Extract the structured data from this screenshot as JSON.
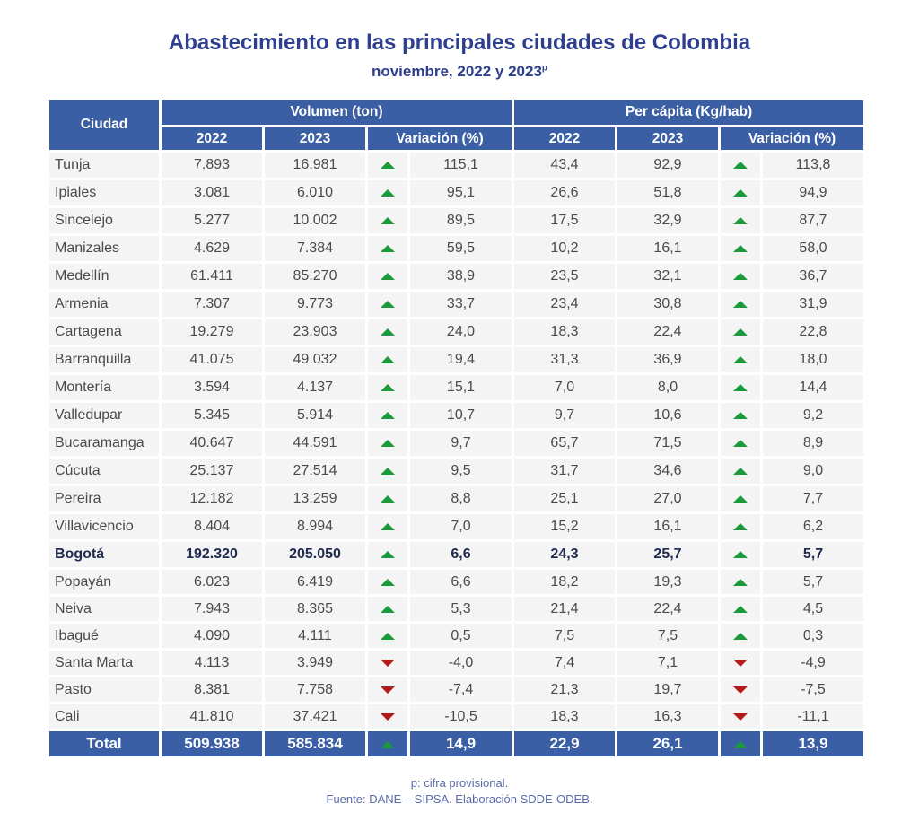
{
  "title": "Abastecimiento en las principales ciudades de Colombia",
  "subtitle": "noviembre, 2022 y 2023",
  "subtitle_sup": "p",
  "footnote": "p: cifra provisional.",
  "source": "Fuente: DANE – SIPSA. Elaboración SDDE-ODEB.",
  "colors": {
    "header": "#3b5fa5",
    "up": "#1a9a3a",
    "down": "#b51a1a",
    "title": "#2e3f8f"
  },
  "chart_data": {
    "type": "table",
    "headers": {
      "city": "Ciudad",
      "group_volume": "Volumen (ton)",
      "group_percapita": "Per cápita (Kg/hab)",
      "y2022": "2022",
      "y2023": "2023",
      "variation": "Variación (%)"
    },
    "columns": [
      "city",
      "vol_2022",
      "vol_2023",
      "vol_var",
      "pc_2022",
      "pc_2023",
      "pc_var"
    ],
    "rows": [
      [
        "Tunja",
        "7.893",
        "16.981",
        "115,1",
        "43,4",
        "92,9",
        "113,8"
      ],
      [
        "Ipiales",
        "3.081",
        "6.010",
        "95,1",
        "26,6",
        "51,8",
        "94,9"
      ],
      [
        "Sincelejo",
        "5.277",
        "10.002",
        "89,5",
        "17,5",
        "32,9",
        "87,7"
      ],
      [
        "Manizales",
        "4.629",
        "7.384",
        "59,5",
        "10,2",
        "16,1",
        "58,0"
      ],
      [
        "Medellín",
        "61.411",
        "85.270",
        "38,9",
        "23,5",
        "32,1",
        "36,7"
      ],
      [
        "Armenia",
        "7.307",
        "9.773",
        "33,7",
        "23,4",
        "30,8",
        "31,9"
      ],
      [
        "Cartagena",
        "19.279",
        "23.903",
        "24,0",
        "18,3",
        "22,4",
        "22,8"
      ],
      [
        "Barranquilla",
        "41.075",
        "49.032",
        "19,4",
        "31,3",
        "36,9",
        "18,0"
      ],
      [
        "Montería",
        "3.594",
        "4.137",
        "15,1",
        "7,0",
        "8,0",
        "14,4"
      ],
      [
        "Valledupar",
        "5.345",
        "5.914",
        "10,7",
        "9,7",
        "10,6",
        "9,2"
      ],
      [
        "Bucaramanga",
        "40.647",
        "44.591",
        "9,7",
        "65,7",
        "71,5",
        "8,9"
      ],
      [
        "Cúcuta",
        "25.137",
        "27.514",
        "9,5",
        "31,7",
        "34,6",
        "9,0"
      ],
      [
        "Pereira",
        "12.182",
        "13.259",
        "8,8",
        "25,1",
        "27,0",
        "7,7"
      ],
      [
        "Villavicencio",
        "8.404",
        "8.994",
        "7,0",
        "15,2",
        "16,1",
        "6,2"
      ],
      [
        "Bogotá",
        "192.320",
        "205.050",
        "6,6",
        "24,3",
        "25,7",
        "5,7"
      ],
      [
        "Popayán",
        "6.023",
        "6.419",
        "6,6",
        "18,2",
        "19,3",
        "5,7"
      ],
      [
        "Neiva",
        "7.943",
        "8.365",
        "5,3",
        "21,4",
        "22,4",
        "4,5"
      ],
      [
        "Ibagué",
        "4.090",
        "4.111",
        "0,5",
        "7,5",
        "7,5",
        "0,3"
      ],
      [
        "Santa Marta",
        "4.113",
        "3.949",
        "-4,0",
        "7,4",
        "7,1",
        "-4,9"
      ],
      [
        "Pasto",
        "8.381",
        "7.758",
        "-7,4",
        "21,3",
        "19,7",
        "-7,5"
      ],
      [
        "Cali",
        "41.810",
        "37.421",
        "-10,5",
        "18,3",
        "16,3",
        "-11,1"
      ]
    ],
    "highlight_row": "Bogotá",
    "total": [
      "Total",
      "509.938",
      "585.834",
      "14,9",
      "22,9",
      "26,1",
      "13,9"
    ]
  }
}
